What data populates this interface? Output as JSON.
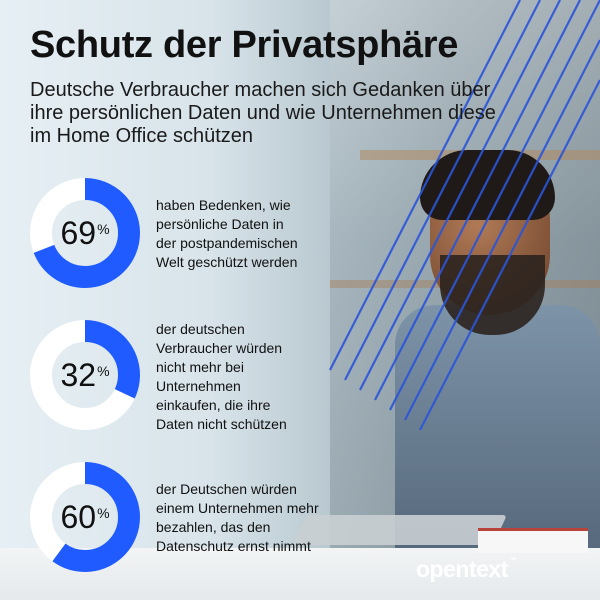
{
  "title": "Schutz der Privatsphäre",
  "subtitle": "Deutsche Verbraucher machen sich Gedanken über ihre persönlichen Daten und wie Unternehmen diese im Home Office schützen",
  "colors": {
    "accent": "#1f5bff",
    "ring_bg": "#ffffff",
    "line": "#2b55d9"
  },
  "stats": [
    {
      "value": 69,
      "number": "69",
      "unit": "%",
      "text": "haben Bedenken, wie persönliche Daten in der postpandemischen Welt geschützt werden"
    },
    {
      "value": 32,
      "number": "32",
      "unit": "%",
      "text": "der deutschen Verbraucher würden nicht mehr bei Unternehmen einkaufen, die ihre Daten nicht schützen"
    },
    {
      "value": 60,
      "number": "60",
      "unit": "%",
      "text": "der Deutschen würden einem Unternehmen mehr bezahlen, das den Datenschutz ernst nimmt"
    }
  ],
  "logo": {
    "name": "opentext",
    "tm": "™"
  }
}
